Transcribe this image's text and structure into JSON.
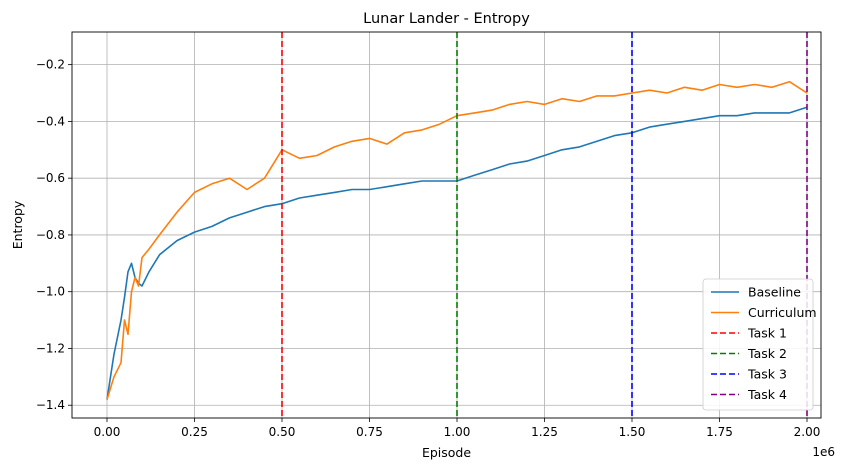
{
  "chart_data": {
    "type": "line",
    "title": "Lunar Lander - Entropy",
    "xlabel": "Episode",
    "ylabel": "Entropy",
    "x_offset_label": "1e6",
    "xlim": [
      -0.1,
      2.04
    ],
    "ylim": [
      -1.445,
      -0.085
    ],
    "grid": true,
    "legend_position": "lower-right",
    "x_ticks": [
      0.0,
      0.25,
      0.5,
      0.75,
      1.0,
      1.25,
      1.5,
      1.75,
      2.0
    ],
    "x_tick_labels": [
      "0.00",
      "0.25",
      "0.50",
      "0.75",
      "1.00",
      "1.25",
      "1.50",
      "1.75",
      "2.00"
    ],
    "y_ticks": [
      -1.4,
      -1.2,
      -1.0,
      -0.8,
      -0.6,
      -0.4,
      -0.2
    ],
    "y_tick_labels": [
      "−1.4",
      "−1.2",
      "−1.0",
      "−0.8",
      "−0.6",
      "−0.4",
      "−0.2"
    ],
    "series": [
      {
        "name": "Baseline",
        "color": "#1f77b4",
        "x": [
          0.0,
          0.02,
          0.04,
          0.05,
          0.06,
          0.07,
          0.08,
          0.09,
          0.1,
          0.12,
          0.15,
          0.2,
          0.25,
          0.3,
          0.35,
          0.4,
          0.45,
          0.5,
          0.55,
          0.6,
          0.65,
          0.7,
          0.75,
          0.8,
          0.85,
          0.9,
          0.95,
          1.0,
          1.05,
          1.1,
          1.15,
          1.2,
          1.25,
          1.3,
          1.35,
          1.4,
          1.45,
          1.5,
          1.55,
          1.6,
          1.65,
          1.7,
          1.75,
          1.8,
          1.85,
          1.9,
          1.95,
          2.0
        ],
        "y": [
          -1.38,
          -1.22,
          -1.1,
          -1.02,
          -0.93,
          -0.9,
          -0.95,
          -0.97,
          -0.98,
          -0.93,
          -0.87,
          -0.82,
          -0.79,
          -0.77,
          -0.74,
          -0.72,
          -0.7,
          -0.69,
          -0.67,
          -0.66,
          -0.65,
          -0.64,
          -0.64,
          -0.63,
          -0.62,
          -0.61,
          -0.61,
          -0.61,
          -0.59,
          -0.57,
          -0.55,
          -0.54,
          -0.52,
          -0.5,
          -0.49,
          -0.47,
          -0.45,
          -0.44,
          -0.42,
          -0.41,
          -0.4,
          -0.39,
          -0.38,
          -0.38,
          -0.37,
          -0.37,
          -0.37,
          -0.35
        ]
      },
      {
        "name": "Curriculum",
        "color": "#ff7f0e",
        "x": [
          0.0,
          0.02,
          0.04,
          0.05,
          0.06,
          0.07,
          0.08,
          0.09,
          0.1,
          0.12,
          0.15,
          0.2,
          0.25,
          0.3,
          0.35,
          0.4,
          0.45,
          0.5,
          0.55,
          0.6,
          0.65,
          0.7,
          0.75,
          0.8,
          0.85,
          0.9,
          0.95,
          1.0,
          1.05,
          1.1,
          1.15,
          1.2,
          1.25,
          1.3,
          1.35,
          1.4,
          1.45,
          1.5,
          1.55,
          1.6,
          1.65,
          1.7,
          1.75,
          1.8,
          1.85,
          1.9,
          1.95,
          2.0
        ],
        "y": [
          -1.38,
          -1.3,
          -1.25,
          -1.1,
          -1.15,
          -1.0,
          -0.95,
          -0.98,
          -0.88,
          -0.85,
          -0.8,
          -0.72,
          -0.65,
          -0.62,
          -0.6,
          -0.64,
          -0.6,
          -0.5,
          -0.53,
          -0.52,
          -0.49,
          -0.47,
          -0.46,
          -0.48,
          -0.44,
          -0.43,
          -0.41,
          -0.38,
          -0.37,
          -0.36,
          -0.34,
          -0.33,
          -0.34,
          -0.32,
          -0.33,
          -0.31,
          -0.31,
          -0.3,
          -0.29,
          -0.3,
          -0.28,
          -0.29,
          -0.27,
          -0.28,
          -0.27,
          -0.28,
          -0.26,
          -0.3
        ]
      }
    ],
    "vlines": [
      {
        "name": "Task 1",
        "x": 0.5,
        "color": "#ff0000"
      },
      {
        "name": "Task 2",
        "x": 1.0,
        "color": "#008000"
      },
      {
        "name": "Task 3",
        "x": 1.5,
        "color": "#0000ff"
      },
      {
        "name": "Task 4",
        "x": 2.0,
        "color": "#800080"
      }
    ]
  }
}
